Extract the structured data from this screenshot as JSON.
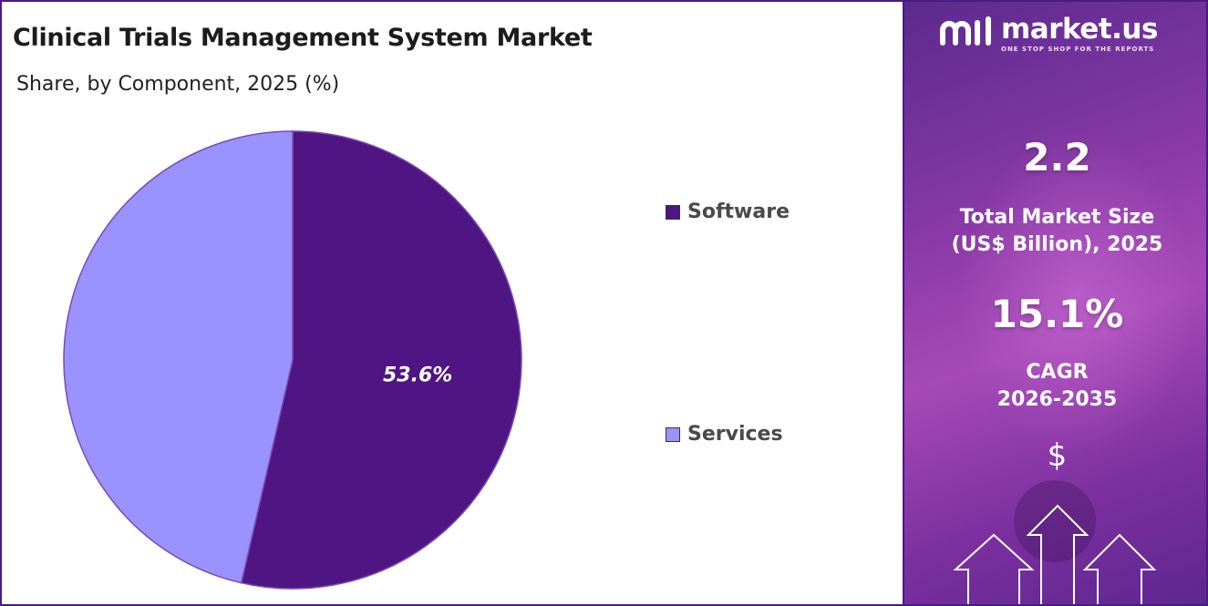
{
  "title": "Clinical Trials Management System Market",
  "subtitle": "Share, by Component, 2025 (%)",
  "colors": {
    "software": "#4f1583",
    "services": "#9a92fe",
    "accent": "#4b1a82"
  },
  "chart_data": {
    "type": "pie",
    "slices": [
      {
        "label": "Software",
        "value": 53.6,
        "value_label": "53.6%",
        "color": "#4f1583"
      },
      {
        "label": "Services",
        "value": 46.4,
        "color": "#9a92fe"
      }
    ],
    "legend": [
      "Software",
      "Services"
    ],
    "legend_placement": "right"
  },
  "legend": {
    "software": "Software",
    "services": "Services"
  },
  "brand": {
    "name": "market.us",
    "tagline": "ONE STOP SHOP FOR THE REPORTS",
    "icon": "market-us-logo-icon"
  },
  "side_panel": {
    "market_size_value": "2.2",
    "market_size_label_line1": "Total Market Size",
    "market_size_label_line2": "(US$ Billion), 2025",
    "cagr_value": "15.1%",
    "cagr_label_line1": "CAGR",
    "cagr_label_line2": "2026-2035",
    "currency_symbol": "$"
  }
}
